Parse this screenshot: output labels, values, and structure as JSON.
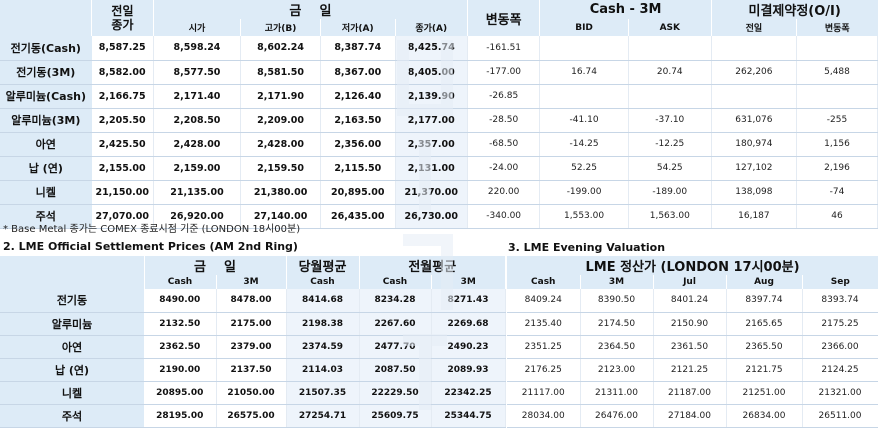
{
  "top": {
    "header": {
      "prev_line1": "전일",
      "prev_line2": "종가",
      "today": "금    일",
      "change": "변동폭",
      "cash3m": "Cash - 3M",
      "oi": "미결제약정(O/I)",
      "sub": [
        "시가",
        "고가(B)",
        "저가(A)",
        "종가(A)",
        "BID",
        "ASK",
        "전일",
        "변동폭"
      ]
    },
    "rows": [
      {
        "label": "전기동(Cash)",
        "prev": "8,587.25",
        "open": "8,598.24",
        "high": "8,602.24",
        "low": "8,387.74",
        "close": "8,425.74",
        "chg": "-161.51",
        "bid": "",
        "ask": "",
        "oi": "",
        "oichg": ""
      },
      {
        "label": "전기동(3M)",
        "prev": "8,582.00",
        "open": "8,577.50",
        "high": "8,581.50",
        "low": "8,367.00",
        "close": "8,405.00",
        "chg": "-177.00",
        "bid": "16.74",
        "ask": "20.74",
        "oi": "262,206",
        "oichg": "5,488"
      },
      {
        "label": "알루미늄(Cash)",
        "prev": "2,166.75",
        "open": "2,171.40",
        "high": "2,171.90",
        "low": "2,126.40",
        "close": "2,139.90",
        "chg": "-26.85",
        "bid": "",
        "ask": "",
        "oi": "",
        "oichg": ""
      },
      {
        "label": "알루미늄(3M)",
        "prev": "2,205.50",
        "open": "2,208.50",
        "high": "2,209.00",
        "low": "2,163.50",
        "close": "2,177.00",
        "chg": "-28.50",
        "bid": "-41.10",
        "ask": "-37.10",
        "oi": "631,076",
        "oichg": "-255"
      },
      {
        "label": "아연",
        "prev": "2,425.50",
        "open": "2,428.00",
        "high": "2,428.00",
        "low": "2,356.00",
        "close": "2,357.00",
        "chg": "-68.50",
        "bid": "-14.25",
        "ask": "-12.25",
        "oi": "180,974",
        "oichg": "1,156"
      },
      {
        "label": "납 (연)",
        "prev": "2,155.00",
        "open": "2,159.00",
        "high": "2,159.50",
        "low": "2,115.50",
        "close": "2,131.00",
        "chg": "-24.00",
        "bid": "52.25",
        "ask": "54.25",
        "oi": "127,102",
        "oichg": "2,196"
      },
      {
        "label": "니켈",
        "prev": "21,150.00",
        "open": "21,135.00",
        "high": "21,380.00",
        "low": "20,895.00",
        "close": "21,370.00",
        "chg": "220.00",
        "bid": "-199.00",
        "ask": "-189.00",
        "oi": "138,098",
        "oichg": "-74"
      },
      {
        "label": "주석",
        "prev": "27,070.00",
        "open": "26,920.00",
        "high": "27,140.00",
        "low": "26,435.00",
        "close": "26,730.00",
        "chg": "-340.00",
        "bid": "1,553.00",
        "ask": "1,563.00",
        "oi": "16,187",
        "oichg": "46"
      }
    ]
  },
  "note": "* Base Metal 종가는 COMEX 종료시점 기준 (LONDON 18시00분)",
  "section2": {
    "title": "2. LME Official Settlement Prices (AM 2nd Ring)",
    "header": {
      "today": "금    일",
      "month_avg": "당월평균",
      "prev_month_avg": "전월평균",
      "sub": [
        "Cash",
        "3M",
        "Cash",
        "Cash",
        "3M"
      ]
    },
    "rows": [
      {
        "label": "전기동",
        "cash": "8490.00",
        "m3": "8478.00",
        "mcash": "8414.68",
        "pcash": "8234.28",
        "p3m": "8271.43"
      },
      {
        "label": "알루미늄",
        "cash": "2132.50",
        "m3": "2175.00",
        "mcash": "2198.38",
        "pcash": "2267.60",
        "p3m": "2269.68"
      },
      {
        "label": "아연",
        "cash": "2362.50",
        "m3": "2379.00",
        "mcash": "2374.59",
        "pcash": "2477.70",
        "p3m": "2490.23"
      },
      {
        "label": "납 (연)",
        "cash": "2190.00",
        "m3": "2137.50",
        "mcash": "2114.03",
        "pcash": "2087.50",
        "p3m": "2089.93"
      },
      {
        "label": "니켈",
        "cash": "20895.00",
        "m3": "21050.00",
        "mcash": "21507.35",
        "pcash": "22229.50",
        "p3m": "22342.25"
      },
      {
        "label": "주석",
        "cash": "28195.00",
        "m3": "26575.00",
        "mcash": "27254.71",
        "pcash": "25609.75",
        "p3m": "25344.75"
      }
    ]
  },
  "section3": {
    "title": "3. LME Evening Valuation",
    "header": {
      "main": "LME 정산가 (LONDON 17시00분)",
      "sub": [
        "Cash",
        "3M",
        "Jul",
        "Aug",
        "Sep"
      ]
    },
    "rows": [
      {
        "cash": "8409.24",
        "m3": "8390.50",
        "jul": "8401.24",
        "aug": "8397.74",
        "sep": "8393.74"
      },
      {
        "cash": "2135.40",
        "m3": "2174.50",
        "jul": "2150.90",
        "aug": "2165.65",
        "sep": "2175.25"
      },
      {
        "cash": "2351.25",
        "m3": "2364.50",
        "jul": "2361.50",
        "aug": "2365.50",
        "sep": "2366.00"
      },
      {
        "cash": "2176.25",
        "m3": "2123.00",
        "jul": "2121.25",
        "aug": "2121.75",
        "sep": "2124.25"
      },
      {
        "cash": "21117.00",
        "m3": "21311.00",
        "jul": "21187.00",
        "aug": "21251.00",
        "sep": "21321.00"
      },
      {
        "cash": "28034.00",
        "m3": "26476.00",
        "jul": "27184.00",
        "aug": "26834.00",
        "sep": "26511.00"
      }
    ]
  },
  "colors": {
    "header_bg": "#ddebf7",
    "border": "#c7d6e6",
    "highlight": "#eef4fb"
  }
}
